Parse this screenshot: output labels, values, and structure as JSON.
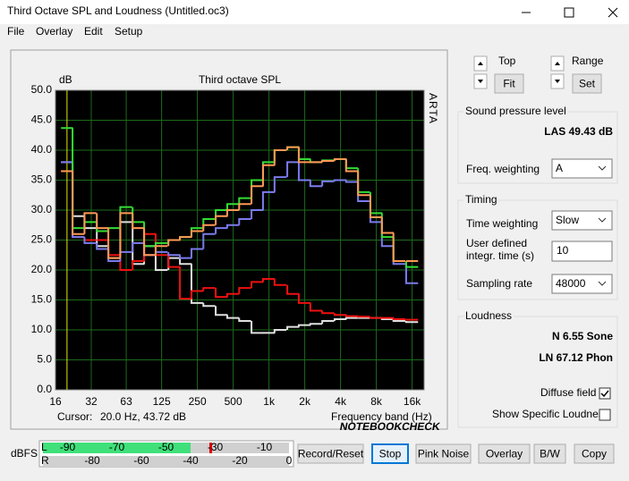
{
  "window": {
    "title": "Third Octave SPL and Loudness (Untitled.oc3)"
  },
  "menu": [
    "File",
    "Overlay",
    "Edit",
    "Setup"
  ],
  "chart_data": {
    "type": "step",
    "title": "Third octave SPL",
    "ylabel": "dB",
    "xlabel": "Frequency band (Hz)",
    "brand": "ARTA",
    "cursor_label": "Cursor:",
    "cursor_value": "20.0 Hz, 43.72 dB",
    "log_x": true,
    "grid": true,
    "background": "#000000",
    "grid_color": "#1d6b1d",
    "cursor_color": "#e6e600",
    "x": [
      20,
      25,
      31.5,
      40,
      50,
      63,
      80,
      100,
      125,
      160,
      200,
      250,
      315,
      400,
      500,
      630,
      800,
      1000,
      1250,
      1600,
      2000,
      2500,
      3150,
      4000,
      5000,
      6300,
      8000,
      10000,
      12500,
      16000
    ],
    "xlim": [
      16,
      20180
    ],
    "xticks": [
      16,
      32,
      63,
      125,
      250,
      500,
      {
        "value": 1000,
        "label": "1k"
      },
      {
        "value": 2000,
        "label": "2k"
      },
      {
        "value": 4000,
        "label": "4k"
      },
      {
        "value": 8000,
        "label": "8k"
      },
      {
        "value": 16000,
        "label": "16k"
      }
    ],
    "ylim": [
      0,
      50
    ],
    "yticks": [
      {
        "value": 0,
        "label": "0.0"
      },
      {
        "value": 5,
        "label": "5.0"
      },
      {
        "value": 10,
        "label": "10.0"
      },
      {
        "value": 15,
        "label": "15.0"
      },
      {
        "value": 20,
        "label": "20.0"
      },
      {
        "value": 25,
        "label": "25.0"
      },
      {
        "value": 30,
        "label": "30.0"
      },
      {
        "value": 35,
        "label": "35.0"
      },
      {
        "value": 40,
        "label": "40.0"
      },
      {
        "value": 45,
        "label": "45.0"
      },
      {
        "value": 50,
        "label": "50.0"
      }
    ],
    "series": [
      {
        "color": "#e0e0e0",
        "values": [
          38,
          29,
          27,
          24,
          22,
          28,
          21,
          24,
          20,
          22,
          21,
          14.5,
          14,
          12.5,
          12,
          11.5,
          9.5,
          9.5,
          10,
          10.5,
          10.8,
          11,
          11.5,
          11.8,
          12,
          12,
          12,
          11.8,
          11.5,
          11.3
        ]
      },
      {
        "color": "#ee1111",
        "values": [
          36.5,
          25.5,
          25,
          25,
          22.5,
          20,
          21.5,
          26,
          22.5,
          20.5,
          15.2,
          16.5,
          17,
          15.5,
          16,
          17,
          18,
          18.5,
          17.5,
          16,
          14.5,
          13.2,
          12.8,
          12.5,
          12.3,
          12.2,
          12,
          12,
          11.8,
          11.7
        ]
      },
      {
        "color": "#7b7bee",
        "values": [
          38,
          25.5,
          24.5,
          23.5,
          21.5,
          23,
          24.5,
          22.5,
          23,
          22.5,
          22,
          23.5,
          26,
          27,
          27.5,
          28.5,
          30,
          33,
          35.5,
          38,
          35,
          34,
          34.8,
          35,
          34.7,
          31.5,
          28,
          24,
          21,
          17.8
        ]
      },
      {
        "color": "#33dd33",
        "values": [
          43.7,
          27,
          28,
          26.5,
          27,
          30.5,
          28,
          24,
          24.5,
          25,
          25.5,
          27,
          28.5,
          30,
          31,
          32,
          35,
          38,
          40,
          40.5,
          38.5,
          38,
          38.3,
          38.5,
          37,
          33,
          29.5,
          25.5,
          21.5,
          20.5
        ]
      },
      {
        "color": "#ff9955",
        "values": [
          36.5,
          26,
          29.5,
          27,
          22,
          29.5,
          27,
          22.5,
          24,
          25,
          25.5,
          26.5,
          27.5,
          29,
          30,
          31,
          34,
          37.5,
          40,
          40.5,
          38,
          38,
          38.2,
          38.5,
          36.5,
          32.5,
          28.8,
          26.2,
          21.5,
          21.5
        ]
      }
    ]
  },
  "controls": {
    "top_label": "Top",
    "fit": "Fit",
    "range_label": "Range",
    "set": "Set",
    "spl": {
      "title": "Sound pressure level",
      "value": "LAS 49.43 dB",
      "freq_weighting_label": "Freq. weighting",
      "freq_weighting": "A"
    },
    "timing": {
      "title": "Timing",
      "time_weighting_label": "Time weighting",
      "time_weighting": "Slow",
      "integr_label_1": "User defined",
      "integr_label_2": "integr. time (s)",
      "integr_time": "10",
      "sampling_rate_label": "Sampling rate",
      "sampling_rate": "48000"
    },
    "loudness": {
      "title": "Loudness",
      "n": "N 6.55 Sone",
      "ln": "LN 67.12 Phon",
      "diffuse": "Diffuse field",
      "diffuse_checked": true,
      "specific": "Show Specific Loudness",
      "specific_checked": false
    }
  },
  "meter": {
    "label": "dBFS",
    "left": "L",
    "right": "R",
    "range": [
      -100,
      0
    ],
    "left_level": -40,
    "left_peak": -32,
    "left_scale": [
      "-90",
      "-70",
      "-50",
      "-30",
      "-10"
    ],
    "right_scale": [
      "-80",
      "-60",
      "-40",
      "-20",
      "0"
    ]
  },
  "buttons": [
    "Record/Reset",
    "Stop",
    "Pink Noise",
    "Overlay",
    "B/W",
    "Copy"
  ],
  "watermark": "NOTEBOOKCHECK"
}
